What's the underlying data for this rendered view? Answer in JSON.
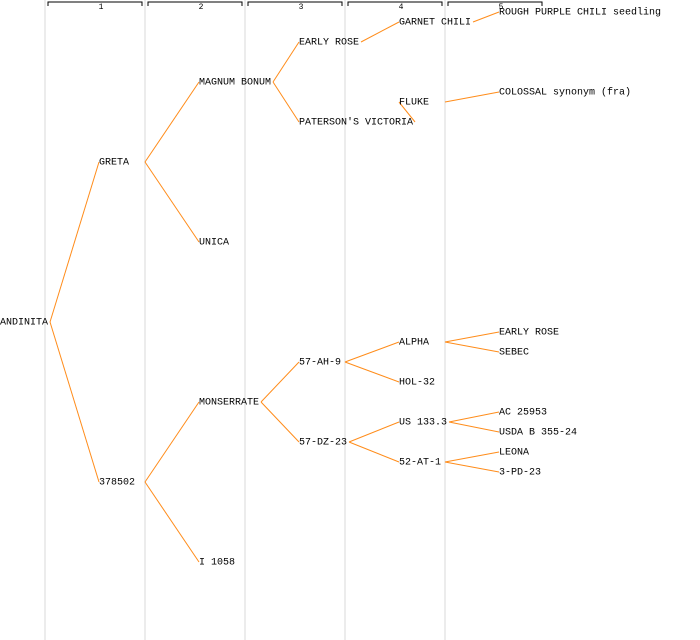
{
  "columns": [
    "1",
    "2",
    "3",
    "4",
    "5"
  ],
  "line_color": "#ff8c1a",
  "tree": {
    "label": "ANDINITA",
    "parents": [
      {
        "label": "GRETA",
        "color": "#0000cc",
        "parents": [
          {
            "label": "MAGNUM BONUM",
            "color": "#0000cc",
            "parents": [
              {
                "label": "EARLY ROSE",
                "parents": [
                  {
                    "label": "GARNET CHILI",
                    "parents": [
                      {
                        "label": "ROUGH PURPLE CHILI seedling"
                      },
                      null
                    ]
                  },
                  null
                ]
              },
              {
                "label": "PATERSON'S VICTORIA",
                "parents": [
                  {
                    "label": "FLUKE",
                    "color": "#0000cc",
                    "parents": [
                      {
                        "label": "COLOSSAL synonym (fra)"
                      },
                      null
                    ]
                  },
                  null
                ]
              }
            ]
          },
          {
            "label": "UNICA"
          }
        ]
      },
      {
        "label": "378502",
        "parents": [
          {
            "label": "MONSERRATE",
            "parents": [
              {
                "label": "57-AH-9",
                "parents": [
                  {
                    "label": "ALPHA",
                    "color": "#0000cc",
                    "parents": [
                      {
                        "label": "EARLY ROSE"
                      },
                      {
                        "label": "SEBEC"
                      }
                    ]
                  },
                  {
                    "label": "HOL-32"
                  }
                ]
              },
              {
                "label": "57-DZ-23",
                "parents": [
                  {
                    "label": "US 133.3",
                    "parents": [
                      {
                        "label": "AC 25953"
                      },
                      {
                        "label": "USDA B 355-24"
                      }
                    ]
                  },
                  {
                    "label": "52-AT-1",
                    "parents": [
                      {
                        "label": "LEONA"
                      },
                      {
                        "label": "3-PD-23"
                      }
                    ]
                  }
                ]
              }
            ]
          },
          {
            "label": "I 1058"
          }
        ]
      }
    ]
  }
}
